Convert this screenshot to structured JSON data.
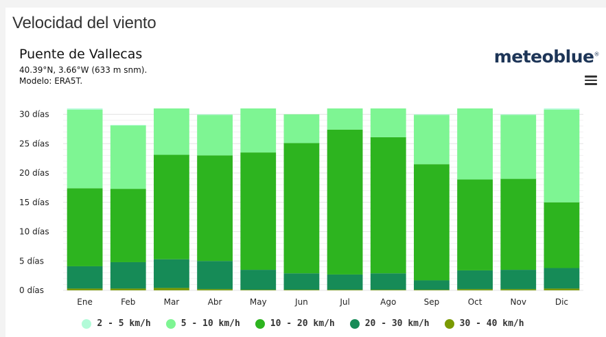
{
  "page": {
    "title": "Velocidad del viento",
    "station": "Puente de Vallecas",
    "coords": "40.39°N, 3.66°W (633 m snm).",
    "model": "Modelo: ERA5T.",
    "brand": "meteoblue",
    "brand_mark": "®"
  },
  "chart_data": {
    "type": "bar",
    "stacked": true,
    "title": "",
    "xlabel": "",
    "ylabel": "",
    "unit": "días",
    "ylim": [
      0,
      31
    ],
    "yticks": [
      0,
      5,
      10,
      15,
      20,
      25,
      30
    ],
    "ytick_labels": [
      "0 días",
      "5 días",
      "10 días",
      "15 días",
      "20 días",
      "25 días",
      "30 días"
    ],
    "grid": true,
    "legend_position": "bottom",
    "categories": [
      "Ene",
      "Feb",
      "Mar",
      "Abr",
      "May",
      "Jun",
      "Jul",
      "Ago",
      "Sep",
      "Oct",
      "Nov",
      "Dic"
    ],
    "series": [
      {
        "name": "30 - 40 km/h",
        "color": "#7a9a01",
        "values": [
          0.3,
          0.3,
          0.4,
          0.2,
          0.1,
          0.1,
          0.1,
          0.1,
          0.1,
          0.2,
          0.2,
          0.3
        ]
      },
      {
        "name": "20 - 30 km/h",
        "color": "#168b57",
        "values": [
          3.8,
          4.5,
          4.9,
          4.8,
          3.4,
          2.8,
          2.6,
          2.8,
          1.6,
          3.2,
          3.3,
          3.5
        ]
      },
      {
        "name": "10 - 20 km/h",
        "color": "#2db41f",
        "values": [
          13.3,
          12.5,
          17.8,
          18.0,
          20.0,
          22.2,
          24.7,
          23.2,
          19.8,
          15.5,
          15.5,
          11.2
        ]
      },
      {
        "name": "5 - 10 km/h",
        "color": "#7ef593",
        "values": [
          13.4,
          10.8,
          7.9,
          6.9,
          7.5,
          4.9,
          3.6,
          4.9,
          8.4,
          12.1,
          10.9,
          15.8
        ]
      },
      {
        "name": "2 - 5 km/h",
        "color": "#b2fbd8",
        "values": [
          0.2,
          0.1,
          0.0,
          0.1,
          0.0,
          0.0,
          0.0,
          0.0,
          0.1,
          0.0,
          0.1,
          0.2
        ]
      }
    ],
    "legend_order": [
      "2 - 5 km/h",
      "5 - 10 km/h",
      "10 - 20 km/h",
      "20 - 30 km/h",
      "30 - 40 km/h"
    ]
  }
}
